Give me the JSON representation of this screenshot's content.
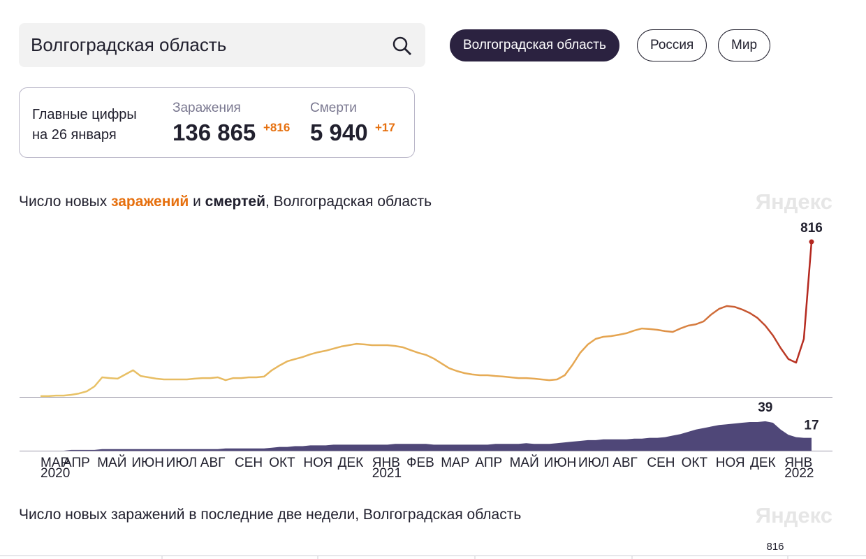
{
  "search": {
    "value": "Волгоградская область"
  },
  "tabs": [
    {
      "label": "Волгоградская область",
      "active": true
    },
    {
      "label": "Россия",
      "active": false
    },
    {
      "label": "Мир",
      "active": false
    }
  ],
  "summary": {
    "title_line1": "Главные цифры",
    "title_line2": "на 26 января",
    "cases": {
      "label": "Заражения",
      "value": "136 865",
      "delta": "+816"
    },
    "deaths": {
      "label": "Смерти",
      "value": "5 940",
      "delta": "+17"
    }
  },
  "chart_data": {
    "type": "line-area",
    "title_parts": [
      "Число новых ",
      "заражений",
      " и ",
      "смертей",
      ", Волгоградская область"
    ],
    "watermark": "Яндекс",
    "x_labels": [
      "МАР",
      "АПР",
      "МАЙ",
      "ИЮН",
      "ИЮЛ",
      "АВГ",
      "СЕН",
      "ОКТ",
      "НОЯ",
      "ДЕК",
      "ЯНВ",
      "ФЕВ",
      "МАР",
      "АПР",
      "МАЙ",
      "ИЮН",
      "ИЮЛ",
      "АВГ",
      "СЕН",
      "ОКТ",
      "НОЯ",
      "ДЕК",
      "ЯНВ"
    ],
    "years": [
      "2020",
      "2021",
      "2022"
    ],
    "series": [
      {
        "name": "заражения",
        "color": [
          "#e8c468",
          "#e5a24e",
          "#b3261e"
        ],
        "values": [
          4,
          4,
          7,
          7,
          11,
          18,
          29,
          55,
          103,
          99,
          96,
          118,
          140,
          110,
          103,
          96,
          92,
          92,
          92,
          92,
          96,
          99,
          99,
          103,
          88,
          99,
          99,
          103,
          103,
          107,
          140,
          165,
          187,
          199,
          210,
          224,
          235,
          243,
          254,
          265,
          272,
          279,
          276,
          272,
          272,
          272,
          268,
          261,
          246,
          232,
          221,
          202,
          176,
          151,
          136,
          125,
          118,
          114,
          114,
          110,
          107,
          103,
          99,
          99,
          96,
          92,
          88,
          92,
          114,
          169,
          232,
          276,
          305,
          316,
          320,
          327,
          335,
          349,
          360,
          357,
          353,
          346,
          342,
          360,
          375,
          382,
          397,
          434,
          463,
          478,
          474,
          460,
          441,
          415,
          375,
          323,
          257,
          199,
          180,
          305,
          816
        ]
      },
      {
        "name": "смерти",
        "color": "#4f4778",
        "values": [
          0,
          0,
          0,
          0,
          1,
          1,
          1,
          1,
          2,
          2,
          2,
          2,
          2,
          2,
          2,
          2,
          2,
          2,
          2,
          2,
          2,
          2,
          2,
          2,
          3,
          3,
          3,
          3,
          3,
          3,
          4,
          5,
          5,
          6,
          6,
          7,
          7,
          7,
          8,
          8,
          8,
          8,
          8,
          8,
          8,
          8,
          9,
          9,
          9,
          9,
          9,
          8,
          8,
          8,
          8,
          8,
          8,
          8,
          8,
          9,
          9,
          9,
          9,
          10,
          9,
          9,
          9,
          10,
          11,
          12,
          13,
          14,
          14,
          15,
          15,
          15,
          15,
          16,
          16,
          17,
          17,
          18,
          20,
          22,
          25,
          28,
          30,
          32,
          34,
          35,
          36,
          37,
          38,
          38,
          39,
          37,
          28,
          21,
          18,
          17,
          17
        ]
      }
    ]
  },
  "second_chart": {
    "title": "Число новых заражений в последние две недели, Волгоградская область",
    "watermark": "Яндекс",
    "value_label": "816"
  }
}
